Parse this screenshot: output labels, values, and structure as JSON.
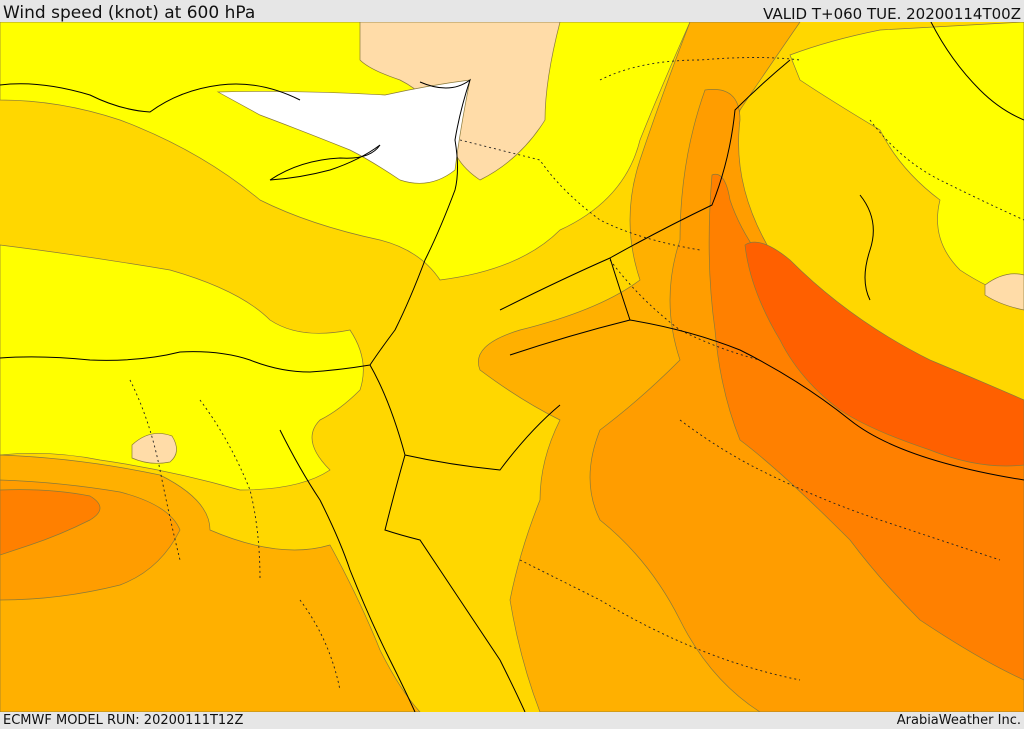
{
  "header": {
    "title": "Wind speed (knot) at 600 hPa",
    "valid": "VALID T+060 TUE. 20200114T00Z"
  },
  "footer": {
    "model_run": "ECMWF MODEL RUN: 20200111T12Z",
    "credit": "ArabiaWeather Inc."
  },
  "map": {
    "variable": "wind speed",
    "units": "knot",
    "pressure_level_hpa": 600,
    "shading_colors": [
      "#ffffff",
      "#ffdca8",
      "#ffff00",
      "#ffd700",
      "#ffb000",
      "#ff9d00",
      "#ff8000",
      "#ff6000"
    ]
  }
}
